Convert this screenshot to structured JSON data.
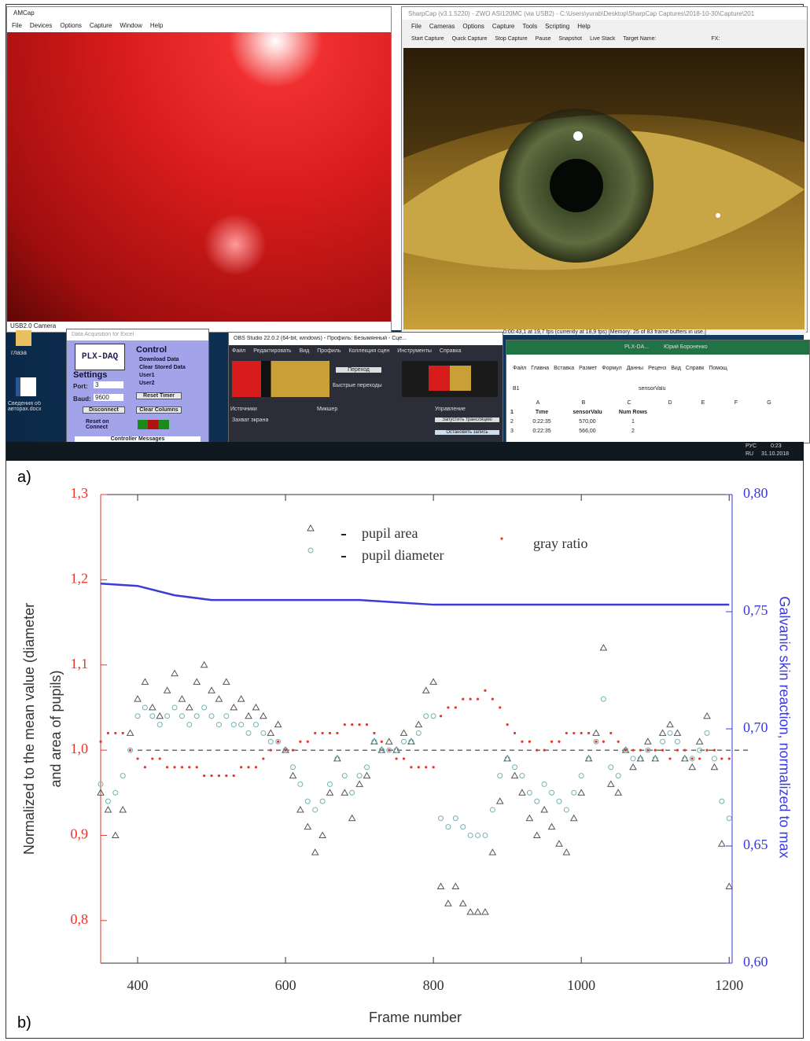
{
  "panel_labels": [
    "a)",
    "b)"
  ],
  "screenshot": {
    "amcap": {
      "title": "AMCap",
      "menu": [
        "File",
        "Devices",
        "Options",
        "Capture",
        "Window",
        "Help"
      ],
      "status": "USB2.0 Camera"
    },
    "sharpcap": {
      "title": "SharpCap (v3.1.5220) - ZWO ASI120MC (via USB2) - C:\\Users\\yurab\\Desktop\\SharpCap Captures\\2018-10-30\\Capture\\201...",
      "menu": [
        "File",
        "Cameras",
        "Options",
        "Capture",
        "Tools",
        "Scripting",
        "Help"
      ],
      "toolbar": [
        "Start Capture",
        "Quick Capture",
        "Stop Capture",
        "Pause",
        "Snapshot",
        "Live Stack",
        "Target Name:",
        "FX:"
      ],
      "status": "0:00:43,1 at 19,7 fps (currently at 18,9 fps) [Memory: 25 of 83 frame buffers in use.]"
    },
    "desktop_icons": [
      "глаза",
      "Сведения об авторах.docx"
    ],
    "plx_daq": {
      "title": "Data Acquisition for Excel",
      "logo": "PLX-DAQ",
      "control": "Control",
      "options": [
        "Download Data",
        "Clear Stored Data",
        "User1",
        "User2"
      ],
      "settings": "Settings",
      "port_label": "Port:",
      "port": "3",
      "baud_label": "Baud:",
      "baud": "9600",
      "buttons": [
        "Reset Timer",
        "Disconnect",
        "Clear Columns"
      ],
      "reset_on_connect": "Reset on Connect",
      "messages": "Controller Messages"
    },
    "obs": {
      "title": "OBS Studio 22.0.2 (64-bit, windows) - Профиль: Безымянный - Сце...",
      "menu": [
        "Файл",
        "Редактировать",
        "Вид",
        "Профиль",
        "Коллекция сцен",
        "Инструменты",
        "Справка"
      ],
      "transition": "Переход",
      "quick": "Быстрые переходы",
      "docks": [
        "Источники",
        "Микшер",
        "Управление"
      ],
      "source": "Захват экрана",
      "buttons": [
        "Запустить трансляцию",
        "Остановить запись"
      ]
    },
    "excel": {
      "title": "PLX-DA...",
      "user": "Юрий Бороненко",
      "tabs": [
        "Файл",
        "Главна",
        "Вставка",
        "Размет",
        "Формул",
        "Данны",
        "Реценз",
        "Вид",
        "Справк",
        "Помощ"
      ],
      "cell": "B1",
      "formula": "sensorValu",
      "columns": [
        "A",
        "B",
        "C",
        "D",
        "E",
        "F",
        "G"
      ],
      "rows": [
        [
          "1",
          "Time",
          "sensorValu",
          "Num Rows"
        ],
        [
          "2",
          "0:22:35",
          "570,00",
          "1"
        ],
        [
          "3",
          "0:22:35",
          "566,00",
          "2"
        ]
      ]
    },
    "taskbar": {
      "lang": "РУС",
      "lang2": "RU",
      "time": "0:23",
      "date": "31.10.2018"
    }
  },
  "chart_data": {
    "type": "scatter",
    "x_label": "Frame number",
    "y_label": [
      "Normalized to the mean value (diameter",
      "and area of pupils)"
    ],
    "y2_label": "Galvanic skin reaction, normalized to max",
    "xlim": [
      350,
      1204
    ],
    "xticks": [
      400,
      600,
      800,
      1000,
      1200
    ],
    "ylim": [
      0.75,
      1.3
    ],
    "yticks": [
      {
        "value": 0.8,
        "label": "0,8"
      },
      {
        "value": 0.9,
        "label": "0,9"
      },
      {
        "value": 1.0,
        "label": "1,0"
      },
      {
        "value": 1.1,
        "label": "1,1"
      },
      {
        "value": 1.2,
        "label": "1,2"
      },
      {
        "value": 1.3,
        "label": "1,3"
      }
    ],
    "y2lim": [
      0.6,
      0.8
    ],
    "y2ticks": [
      {
        "value": 0.6,
        "label": "0,60"
      },
      {
        "value": 0.65,
        "label": "0,65"
      },
      {
        "value": 0.7,
        "label": "0,70"
      },
      {
        "value": 0.75,
        "label": "0,75"
      },
      {
        "value": 0.8,
        "label": "0,80"
      }
    ],
    "y_axis_color": "#e8352b",
    "y2_axis_color": "#3b3bdc",
    "hlines": [
      1.0
    ],
    "x": [
      350,
      360,
      370,
      380,
      390,
      400,
      410,
      420,
      430,
      440,
      450,
      460,
      470,
      480,
      490,
      500,
      510,
      520,
      530,
      540,
      550,
      560,
      570,
      580,
      590,
      600,
      610,
      620,
      630,
      640,
      650,
      660,
      670,
      680,
      690,
      700,
      710,
      720,
      730,
      740,
      750,
      760,
      770,
      780,
      790,
      800,
      810,
      820,
      830,
      840,
      850,
      860,
      870,
      880,
      890,
      900,
      910,
      920,
      930,
      940,
      950,
      960,
      970,
      980,
      990,
      1000,
      1010,
      1020,
      1030,
      1040,
      1050,
      1060,
      1070,
      1080,
      1090,
      1100,
      1110,
      1120,
      1130,
      1140,
      1150,
      1160,
      1170,
      1180,
      1190,
      1200
    ],
    "series": [
      {
        "name": "pupil area",
        "marker": "triangle",
        "color": "#555555",
        "values": [
          0.95,
          0.93,
          0.9,
          0.93,
          1.02,
          1.06,
          1.08,
          1.05,
          1.04,
          1.07,
          1.09,
          1.06,
          1.05,
          1.08,
          1.1,
          1.07,
          1.06,
          1.08,
          1.05,
          1.06,
          1.04,
          1.05,
          1.04,
          1.02,
          1.03,
          1.0,
          0.97,
          0.93,
          0.91,
          0.88,
          0.9,
          0.95,
          0.99,
          0.95,
          0.92,
          0.96,
          0.97,
          1.01,
          1.0,
          1.01,
          1.0,
          1.02,
          1.01,
          1.03,
          1.07,
          1.08,
          0.84,
          0.82,
          0.84,
          0.82,
          0.81,
          0.81,
          0.81,
          0.88,
          0.94,
          0.99,
          0.97,
          0.95,
          0.92,
          0.9,
          0.93,
          0.91,
          0.89,
          0.88,
          0.92,
          0.95,
          0.99,
          1.02,
          1.12,
          0.96,
          0.95,
          1.0,
          0.98,
          0.99,
          1.01,
          0.99,
          1.02,
          1.03,
          1.02,
          0.99,
          0.98,
          1.01,
          1.04,
          0.98,
          0.89,
          0.84
        ]
      },
      {
        "name": "pupil diameter",
        "marker": "circle",
        "color": "#6fb3b0",
        "values": [
          0.96,
          0.94,
          0.95,
          0.97,
          1.0,
          1.04,
          1.05,
          1.04,
          1.03,
          1.04,
          1.05,
          1.04,
          1.03,
          1.04,
          1.05,
          1.04,
          1.03,
          1.04,
          1.03,
          1.03,
          1.02,
          1.03,
          1.02,
          1.01,
          1.01,
          1.0,
          0.98,
          0.96,
          0.94,
          0.93,
          0.94,
          0.96,
          0.99,
          0.97,
          0.95,
          0.97,
          0.98,
          1.01,
          1.0,
          1.0,
          1.0,
          1.01,
          1.01,
          1.02,
          1.04,
          1.04,
          0.92,
          0.91,
          0.92,
          0.91,
          0.9,
          0.9,
          0.9,
          0.93,
          0.97,
          0.99,
          0.98,
          0.97,
          0.95,
          0.94,
          0.96,
          0.95,
          0.94,
          0.93,
          0.95,
          0.97,
          0.99,
          1.01,
          1.06,
          0.98,
          0.97,
          1.0,
          0.99,
          0.99,
          1.0,
          0.99,
          1.01,
          1.02,
          1.01,
          0.99,
          0.99,
          1.0,
          1.02,
          0.99,
          0.94,
          0.92
        ]
      },
      {
        "name": "gray ratio",
        "marker": "dot",
        "color": "#e8352b",
        "values": [
          1.01,
          1.02,
          1.02,
          1.02,
          1.0,
          0.99,
          0.98,
          0.99,
          0.99,
          0.98,
          0.98,
          0.98,
          0.98,
          0.98,
          0.97,
          0.97,
          0.97,
          0.97,
          0.97,
          0.98,
          0.98,
          0.98,
          0.99,
          1.0,
          1.01,
          1.0,
          1.0,
          1.01,
          1.01,
          1.02,
          1.02,
          1.02,
          1.02,
          1.03,
          1.03,
          1.03,
          1.03,
          1.02,
          1.01,
          1.0,
          0.99,
          0.99,
          0.98,
          0.98,
          0.98,
          0.98,
          1.04,
          1.05,
          1.05,
          1.06,
          1.06,
          1.06,
          1.07,
          1.06,
          1.05,
          1.03,
          1.02,
          1.01,
          1.01,
          1.0,
          1.0,
          1.01,
          1.01,
          1.02,
          1.02,
          1.02,
          1.02,
          1.01,
          1.01,
          1.02,
          1.01,
          1.0,
          1.0,
          1.0,
          1.0,
          1.0,
          1.0,
          0.99,
          1.0,
          1.0,
          0.99,
          0.99,
          1.0,
          1.0,
          0.99,
          0.99
        ]
      },
      {
        "marker": "line",
        "axis": "y2",
        "color": "#3b3bdc",
        "x": [
          350,
          400,
          450,
          500,
          550,
          600,
          650,
          700,
          750,
          800,
          850,
          900,
          950,
          1000,
          1050,
          1100,
          1150,
          1200
        ],
        "values": [
          0.762,
          0.761,
          0.757,
          0.755,
          0.755,
          0.755,
          0.755,
          0.755,
          0.754,
          0.753,
          0.753,
          0.753,
          0.753,
          0.753,
          0.753,
          0.753,
          0.753,
          0.753
        ]
      }
    ]
  }
}
